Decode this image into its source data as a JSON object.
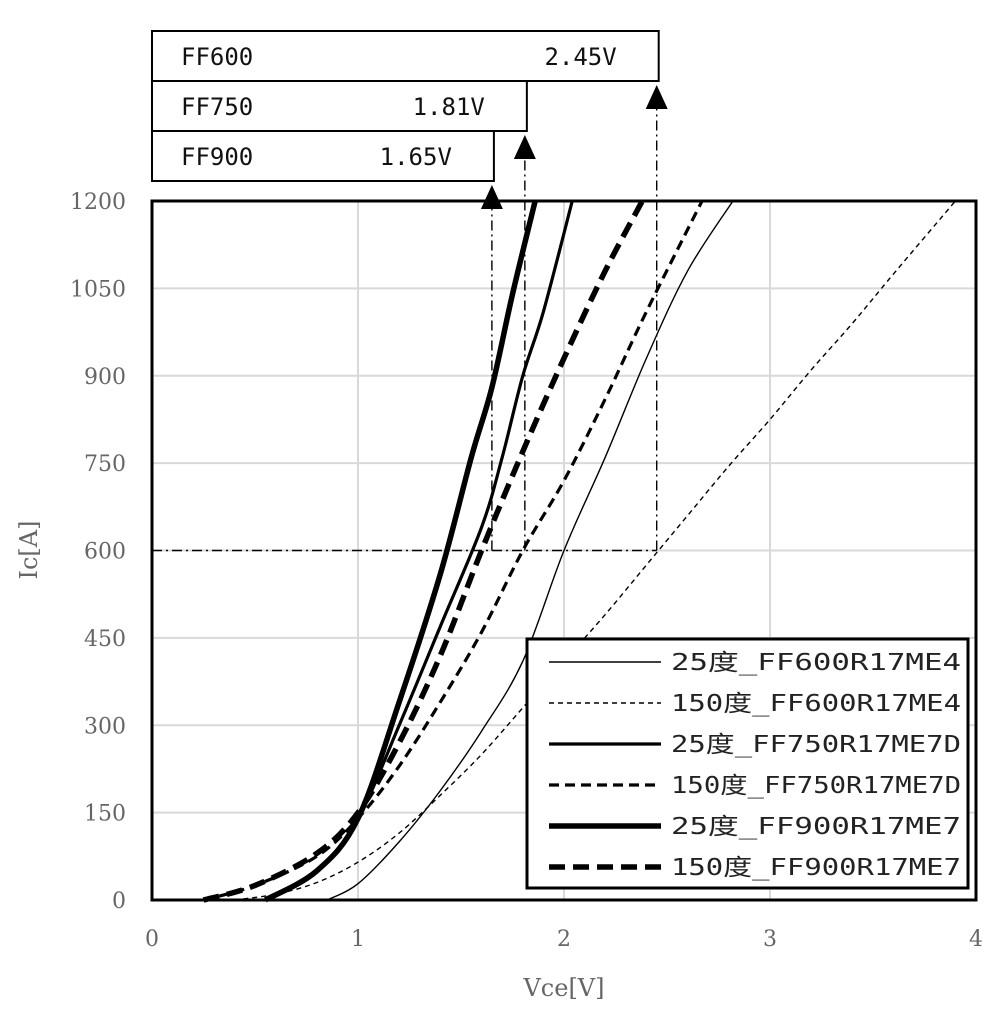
{
  "chart_data": {
    "type": "line",
    "xlabel": "Vce[V]",
    "ylabel": "Ic[A]",
    "xlim": [
      0,
      4
    ],
    "ylim": [
      0,
      1200
    ],
    "x_ticks": [
      0,
      1,
      2,
      3,
      4
    ],
    "y_ticks": [
      0,
      150,
      300,
      450,
      600,
      750,
      900,
      1050,
      1200
    ],
    "grid": true,
    "legend_position": "bottom-right",
    "series": [
      {
        "name": "25度_FF600R17ME4",
        "style": "thin-solid",
        "x": [
          0.85,
          1.0,
          1.2,
          1.4,
          1.6,
          1.8,
          2.0,
          2.2,
          2.4,
          2.6,
          2.82
        ],
        "y": [
          0,
          28,
          100,
          188,
          290,
          410,
          600,
          760,
          930,
          1080,
          1200
        ]
      },
      {
        "name": "150度_FF600R17ME4",
        "style": "thin-dashed",
        "x": [
          0.4,
          0.6,
          0.8,
          1.0,
          1.2,
          1.4,
          1.6,
          1.8,
          2.0,
          2.2,
          2.4,
          2.6,
          2.8,
          3.0,
          3.2,
          3.4,
          3.6,
          3.9
        ],
        "y": [
          0,
          10,
          30,
          65,
          115,
          180,
          250,
          330,
          410,
          490,
          575,
          660,
          745,
          825,
          910,
          990,
          1075,
          1200
        ]
      },
      {
        "name": "25度_FF750R17ME7D",
        "style": "medium-solid",
        "x": [
          0.55,
          0.8,
          1.0,
          1.2,
          1.4,
          1.6,
          1.7,
          1.8,
          1.9,
          2.04
        ],
        "y": [
          0,
          50,
          140,
          300,
          470,
          640,
          760,
          900,
          1010,
          1200
        ]
      },
      {
        "name": "150度_FF750R17ME7D",
        "style": "medium-dashed",
        "x": [
          0.25,
          0.5,
          0.8,
          1.0,
          1.2,
          1.4,
          1.6,
          1.8,
          2.0,
          2.2,
          2.4,
          2.67
        ],
        "y": [
          0,
          25,
          75,
          140,
          230,
          340,
          460,
          600,
          720,
          860,
          1010,
          1200
        ]
      },
      {
        "name": "25度_FF900R17ME7",
        "style": "thick-solid",
        "x": [
          0.55,
          0.8,
          1.0,
          1.2,
          1.4,
          1.55,
          1.65,
          1.75,
          1.86
        ],
        "y": [
          0,
          50,
          140,
          340,
          560,
          760,
          880,
          1040,
          1200
        ]
      },
      {
        "name": "150度_FF900R17ME7",
        "style": "thick-dashed",
        "x": [
          0.25,
          0.5,
          0.8,
          1.0,
          1.2,
          1.4,
          1.6,
          1.8,
          2.0,
          2.2,
          2.38
        ],
        "y": [
          0,
          25,
          80,
          150,
          270,
          420,
          600,
          770,
          930,
          1080,
          1200
        ]
      }
    ],
    "annotations": [
      {
        "label": "FF600",
        "value": "2.45V",
        "x": 2.45
      },
      {
        "label": "FF750",
        "value": "1.81V",
        "x": 1.81
      },
      {
        "label": "FF900",
        "value": "1.65V",
        "x": 1.65
      }
    ],
    "reference_y": 600
  },
  "colors": {
    "line": "#000000",
    "grid": "#d9d9d9",
    "tick": "#666666"
  }
}
